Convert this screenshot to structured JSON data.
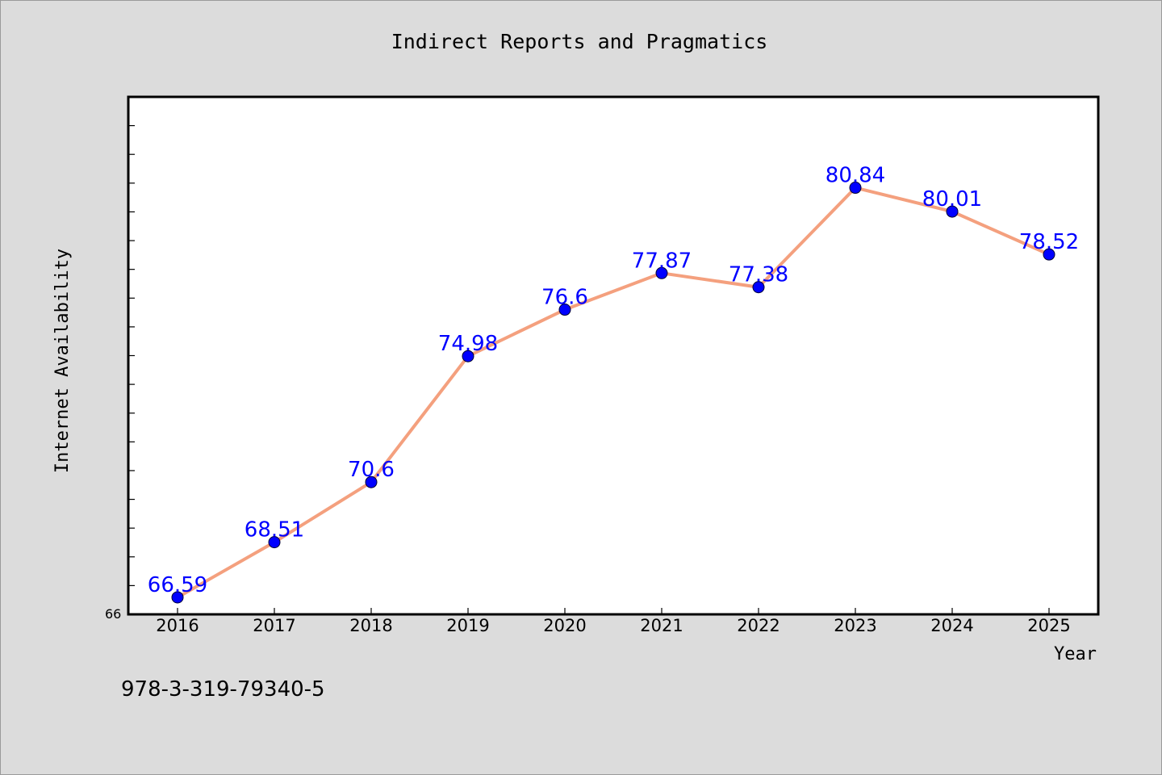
{
  "footer_text": "978-3-319-79340-5",
  "chart_data": {
    "type": "line",
    "title": "Indirect Reports and Pragmatics",
    "xlabel": "Year",
    "ylabel": "Internet Availability",
    "categories": [
      "2016",
      "2017",
      "2018",
      "2019",
      "2020",
      "2021",
      "2022",
      "2023",
      "2024",
      "2025"
    ],
    "series": [
      {
        "values": [
          66.59,
          68.51,
          70.6,
          74.98,
          76.6,
          77.87,
          77.38,
          80.84,
          80.01,
          78.52
        ]
      }
    ],
    "data_labels": [
      "66.59",
      "68.51",
      "70.6",
      "74.98",
      "76.6",
      "77.87",
      "77.38",
      "80.84",
      "80.01",
      "78.52"
    ],
    "y_min_label": "66",
    "ylim": [
      66,
      84
    ],
    "grid": false,
    "colors": {
      "line": "#f4a07e",
      "marker": "#0000ff",
      "data_label": "#0000ff",
      "background": "#dcdcdc",
      "plot_background": "#ffffff"
    }
  }
}
